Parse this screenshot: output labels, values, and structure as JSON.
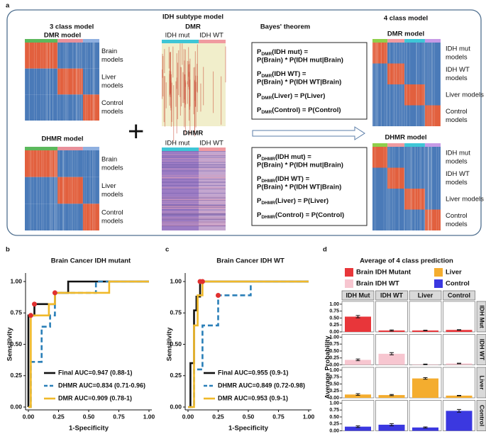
{
  "panel_a": {
    "label": "a",
    "three_class": {
      "title": "3 class model",
      "dmr_title": "DMR model",
      "dhmr_title": "DHMR model",
      "dmr_rows": [
        [
          "Brain",
          "models"
        ],
        [
          "Liver",
          "models"
        ],
        [
          "Control",
          "models"
        ]
      ],
      "dhmr_rows": [
        [
          "Brain",
          "models"
        ],
        [
          "Liver",
          "models"
        ],
        [
          "Control",
          "models"
        ]
      ]
    },
    "idh": {
      "title": "IDH subtype model",
      "dmr_title": "DMR",
      "dhmr_title": "DHMR",
      "dmr_groups": [
        "IDH mut",
        "IDH WT"
      ],
      "dhmr_groups": [
        "IDH mut",
        "IDH WT"
      ]
    },
    "bayes": {
      "title": "Bayes' theorem",
      "dmr_formulas": [
        {
          "sym": "P",
          "sub": "DMR",
          "head": "(IDH mut) =",
          "body": "P(Brain) * P(IDH mut|Brain)"
        },
        {
          "sym": "P",
          "sub": "DMR",
          "head": "(IDH WT) =",
          "body": "P(Brain) * P(IDH WT|Brain)"
        },
        {
          "sym": "P",
          "sub": "DMR",
          "head": "(Liver) = P(Liver)"
        },
        {
          "sym": "P",
          "sub": "DMR",
          "head": "(Control) = P(Control)"
        }
      ],
      "dhmr_formulas": [
        {
          "sym": "P",
          "sub": "DHMR",
          "head": "(IDH mut) =",
          "body": "P(Brain) * P(IDH mut|Brain)"
        },
        {
          "sym": "P",
          "sub": "DHMR",
          "head": "(IDH WT) =",
          "body": "P(Brain) * P(IDH WT|Brain)"
        },
        {
          "sym": "P",
          "sub": "DHMR",
          "head": "(Liver) = P(Liver)"
        },
        {
          "sym": "P",
          "sub": "DHMR",
          "head": "(Control) = P(Control)"
        }
      ]
    },
    "four_class": {
      "title": "4 class model",
      "dmr_title": "DMR model",
      "dhmr_title": "DHMR model",
      "dmr_rows": [
        [
          "IDH mut",
          "models"
        ],
        [
          "IDH WT",
          "models"
        ],
        [
          "Liver models"
        ],
        [
          "Control",
          "models"
        ]
      ],
      "dhmr_rows": [
        [
          "IDH mut",
          "models"
        ],
        [
          "IDH WT",
          "models"
        ],
        [
          "Liver models"
        ],
        [
          "Control",
          "models"
        ]
      ]
    }
  },
  "chart_data": [
    {
      "type": "roc",
      "panel_label": "b",
      "title": "Brain Cancer IDH mutant",
      "x_label": "1-Specificity",
      "y_label": "Sensitivity",
      "xlim": [
        0,
        1
      ],
      "ylim": [
        0,
        1
      ],
      "xticks": [
        {
          "value": 0,
          "label": "0.00"
        },
        {
          "value": 0.25,
          "label": "0.25"
        },
        {
          "value": 0.5,
          "label": "0.50"
        },
        {
          "value": 0.75,
          "label": "0.75"
        },
        {
          "value": 1,
          "label": "1.00"
        }
      ],
      "yticks": [
        {
          "value": 0,
          "label": "0.00"
        },
        {
          "value": 0.25,
          "label": "0.25"
        },
        {
          "value": 0.5,
          "label": "0.50"
        },
        {
          "value": 0.75,
          "label": "0.75"
        },
        {
          "value": 1,
          "label": "1.00"
        }
      ],
      "series": [
        {
          "name": "Final AUC=0.947 (0.88-1)",
          "color": "#111111",
          "dashed": false,
          "x": [
            0,
            0,
            0.05,
            0.05,
            0.22,
            0.22,
            0.33,
            0.33,
            1
          ],
          "values": [
            0,
            0.73,
            0.73,
            0.82,
            0.82,
            0.91,
            0.91,
            1,
            1
          ]
        },
        {
          "name": "DHMR AUC=0.834 (0.71-0.96)",
          "color": "#2a7fb8",
          "dashed": true,
          "x": [
            0,
            0.02,
            0.02,
            0.11,
            0.11,
            0.18,
            0.18,
            0.22,
            0.22,
            0.56,
            0.56,
            1
          ],
          "values": [
            0,
            0,
            0.36,
            0.36,
            0.64,
            0.64,
            0.73,
            0.73,
            0.91,
            0.91,
            1,
            1
          ]
        },
        {
          "name": "DMR AUC=0.909 (0.78-1)",
          "color": "#f0b92a",
          "dashed": false,
          "x": [
            0,
            0.02,
            0.02,
            0.17,
            0.17,
            0.22,
            0.22,
            0.67,
            0.67,
            1
          ],
          "values": [
            0,
            0,
            0.73,
            0.73,
            0.82,
            0.82,
            0.91,
            0.91,
            1,
            1
          ]
        }
      ],
      "points": {
        "color": "#e03030",
        "x": [
          0.02,
          0.05,
          0.22
        ],
        "values": [
          0.73,
          0.82,
          0.91
        ]
      }
    },
    {
      "type": "roc",
      "panel_label": "c",
      "title": "Brain Cancer IDH WT",
      "x_label": "1-Specificity",
      "y_label": "Sensitivity",
      "xlim": [
        0,
        1
      ],
      "ylim": [
        0,
        1
      ],
      "xticks": [
        {
          "value": 0,
          "label": "0.00"
        },
        {
          "value": 0.25,
          "label": "0.25"
        },
        {
          "value": 0.5,
          "label": "0.50"
        },
        {
          "value": 0.75,
          "label": "0.75"
        },
        {
          "value": 1,
          "label": "1.00"
        }
      ],
      "yticks": [
        {
          "value": 0,
          "label": "0.00"
        },
        {
          "value": 0.25,
          "label": "0.25"
        },
        {
          "value": 0.5,
          "label": "0.50"
        },
        {
          "value": 0.75,
          "label": "0.75"
        },
        {
          "value": 1,
          "label": "1.00"
        }
      ],
      "series": [
        {
          "name": "Final AUC=0.955 (0.9-1)",
          "color": "#111111",
          "dashed": false,
          "x": [
            0,
            0.02,
            0.02,
            0.05,
            0.05,
            0.07,
            0.07,
            0.1,
            0.1,
            1
          ],
          "values": [
            0,
            0,
            0.35,
            0.35,
            0.77,
            0.77,
            0.88,
            0.88,
            1,
            1
          ]
        },
        {
          "name": "DHMR AUC=0.849 (0.72-0.98)",
          "color": "#2a7fb8",
          "dashed": true,
          "x": [
            0,
            0.05,
            0.05,
            0.12,
            0.12,
            0.25,
            0.25,
            0.52,
            0.52,
            1
          ],
          "values": [
            0,
            0,
            0.3,
            0.3,
            0.65,
            0.65,
            0.89,
            0.89,
            1,
            1
          ]
        },
        {
          "name": "DMR AUC=0.953 (0.9-1)",
          "color": "#f0b92a",
          "dashed": false,
          "x": [
            0,
            0.05,
            0.05,
            0.08,
            0.08,
            0.12,
            0.12,
            1
          ],
          "values": [
            0,
            0,
            0.65,
            0.65,
            0.89,
            0.89,
            1,
            1
          ]
        }
      ],
      "points": {
        "color": "#e03030",
        "x": [
          0.1,
          0.12,
          0.25
        ],
        "values": [
          1,
          1,
          0.89
        ]
      }
    },
    {
      "type": "facet_bar",
      "panel_label": "d",
      "title": "Average of 4 class prediction",
      "y_label": "Average Probability",
      "categories": [
        "IDH Mut",
        "IDH WT",
        "Liver",
        "Control"
      ],
      "row_labels": [
        "IDH Mut",
        "IDH WT",
        "Liver",
        "Control"
      ],
      "ylim": [
        0,
        1.1
      ],
      "yticks": [
        {
          "value": 0,
          "label": "0.00"
        },
        {
          "value": 0.25,
          "label": "0.25"
        },
        {
          "value": 0.5,
          "label": "0.50"
        },
        {
          "value": 0.75,
          "label": "0.75"
        },
        {
          "value": 1,
          "label": "1.00"
        }
      ],
      "series": [
        {
          "name": "Brain IDH Mutant",
          "color": "#e8363a",
          "values": [
            0.55,
            0.05,
            0.05,
            0.07
          ],
          "errors": [
            0.04,
            0.02,
            0.01,
            0.01
          ]
        },
        {
          "name": "Brain IDH WT",
          "color": "#f7c6d0",
          "values": [
            0.18,
            0.4,
            0.02,
            0.05
          ],
          "errors": [
            0.03,
            0.04,
            0.01,
            0.01
          ]
        },
        {
          "name": "Liver",
          "color": "#f4ad2f",
          "values": [
            0.12,
            0.1,
            0.7,
            0.08
          ],
          "errors": [
            0.03,
            0.02,
            0.03,
            0.01
          ]
        },
        {
          "name": "Control",
          "color": "#3b38e0",
          "values": [
            0.15,
            0.22,
            0.12,
            0.72
          ],
          "errors": [
            0.03,
            0.04,
            0.02,
            0.05
          ]
        }
      ]
    }
  ]
}
